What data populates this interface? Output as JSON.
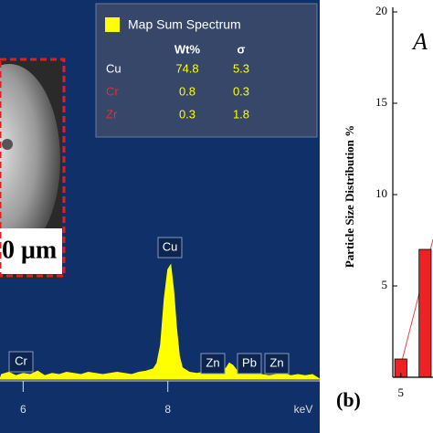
{
  "chart_data": [
    {
      "type": "line",
      "background": "#10306a",
      "x": [
        5.7,
        5.8,
        5.9,
        6.0,
        6.1,
        6.2,
        6.3,
        6.4,
        6.5,
        6.6,
        6.7,
        6.8,
        6.9,
        7.0,
        7.1,
        7.2,
        7.3,
        7.4,
        7.5,
        7.6,
        7.7,
        7.8,
        7.85,
        7.9,
        7.95,
        8.0,
        8.04,
        8.08,
        8.12,
        8.16,
        8.2,
        8.3,
        8.4,
        8.5,
        8.6,
        8.7,
        8.8,
        8.85,
        8.9,
        8.95,
        9.0,
        9.1,
        9.2,
        9.3,
        9.4,
        9.5,
        9.6,
        9.7,
        9.8,
        9.9,
        10.0
      ],
      "series": [
        {
          "name": "Map Sum Spectrum",
          "color": "#ffff00",
          "values": [
            4,
            6,
            3,
            5,
            4,
            7,
            3,
            5,
            4,
            6,
            5,
            4,
            6,
            5,
            4,
            5,
            6,
            5,
            4,
            6,
            7,
            9,
            14,
            30,
            70,
            96,
            100,
            78,
            45,
            20,
            10,
            6,
            5,
            6,
            9,
            11,
            9,
            14,
            12,
            8,
            6,
            4,
            5,
            4,
            3,
            4,
            5,
            3,
            4,
            3,
            4
          ]
        }
      ],
      "xlim": [
        5.68,
        10.1
      ],
      "ylim": [
        0,
        100
      ],
      "xticks": [
        6,
        8
      ],
      "xlabel": "keV",
      "peak_labels": [
        "Cr",
        "Cu",
        "Zn",
        "Pb",
        "Zn"
      ],
      "table": {
        "columns": [
          "Wt%",
          "σ"
        ],
        "rows": [
          {
            "element": "Cu",
            "color": "#ffffff",
            "values": [
              74.8,
              5.3
            ]
          },
          {
            "element": "Cr",
            "color": "#e03030",
            "values": [
              0.8,
              0.3
            ]
          },
          {
            "element": "Zr",
            "color": "#e03030",
            "values": [
              0.3,
              1.8
            ]
          }
        ]
      },
      "scale_bar": "0 μm"
    },
    {
      "type": "histogram",
      "color": "#ee2222",
      "bins": [
        4.5,
        5.5,
        6.5,
        7.5
      ],
      "values": [
        1,
        0,
        7
      ],
      "xlim": [
        4.34,
        7.5
      ],
      "xticks": [
        5
      ],
      "ylim": [
        0,
        20
      ],
      "yticks": [
        5,
        10,
        15,
        20
      ],
      "ylabel": "Particle Size Distribution  %",
      "panel_label": "(b)",
      "annotation": "A"
    }
  ]
}
